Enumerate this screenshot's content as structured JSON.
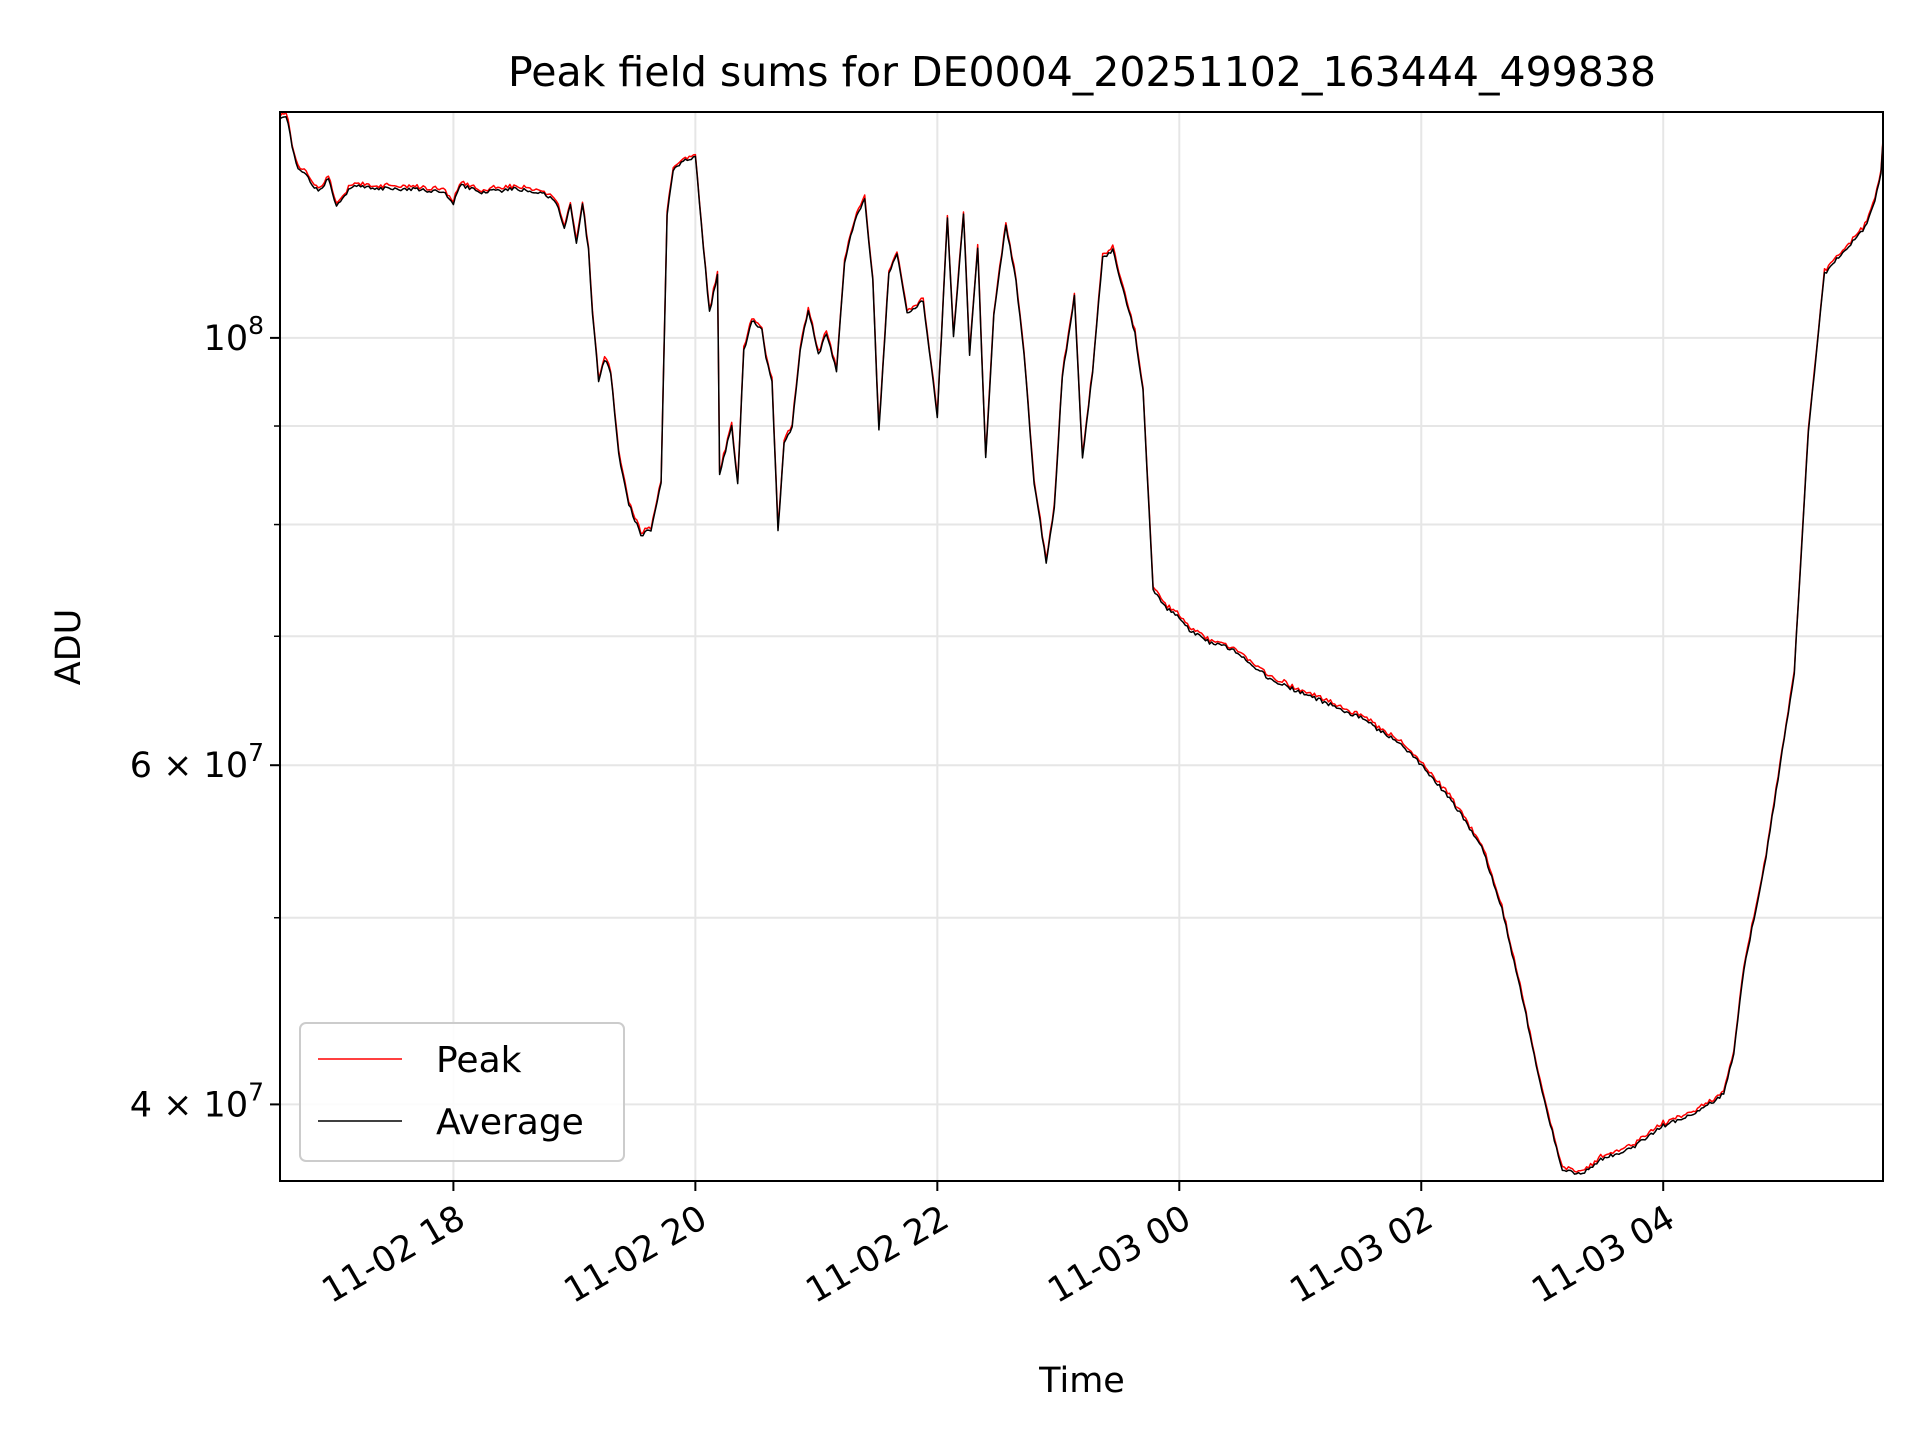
{
  "chart_data": {
    "type": "line",
    "title": "Peak field sums for DE0004_20251102_163444_499838",
    "xlabel": "Time",
    "ylabel": "ADU",
    "yscale": "log",
    "grid": true,
    "legend_position": "lower-left",
    "xlim": [
      "2025-11-02 16:34",
      "2025-11-03 05:49"
    ],
    "ylim": [
      36500000,
      131000000
    ],
    "x_ticks": [
      {
        "value": "2025-11-02 18:00",
        "label": "11-02 18"
      },
      {
        "value": "2025-11-02 20:00",
        "label": "11-02 20"
      },
      {
        "value": "2025-11-02 22:00",
        "label": "11-02 22"
      },
      {
        "value": "2025-11-03 00:00",
        "label": "11-03 00"
      },
      {
        "value": "2025-11-03 02:00",
        "label": "11-03 02"
      },
      {
        "value": "2025-11-03 04:00",
        "label": "11-03 04"
      }
    ],
    "y_ticks": [
      {
        "value": 100000000,
        "mantissa": "",
        "exponent": "8",
        "base": "10"
      },
      {
        "value": 60000000,
        "mantissa": "6",
        "exponent": "7",
        "base": "10"
      },
      {
        "value": 40000000,
        "mantissa": "4",
        "exponent": "7",
        "base": "10"
      }
    ],
    "y_minor_ticks": [
      50000000,
      70000000,
      80000000,
      90000000
    ],
    "times_symbol": "×",
    "series": [
      {
        "name": "Peak",
        "color": "#ff0000"
      },
      {
        "name": "Average",
        "color": "#000000"
      }
    ],
    "x": [
      "2025-11-02 16:34",
      "2025-11-02 16:37",
      "2025-11-02 16:42",
      "2025-11-02 16:48",
      "2025-11-02 16:53",
      "2025-11-02 16:58",
      "2025-11-02 17:02",
      "2025-11-02 17:10",
      "2025-11-02 17:25",
      "2025-11-02 17:40",
      "2025-11-02 17:55",
      "2025-11-02 18:00",
      "2025-11-02 18:03",
      "2025-11-02 18:15",
      "2025-11-02 18:30",
      "2025-11-02 18:45",
      "2025-11-02 18:52",
      "2025-11-02 18:55",
      "2025-11-02 18:58",
      "2025-11-02 19:01",
      "2025-11-02 19:04",
      "2025-11-02 19:07",
      "2025-11-02 19:09",
      "2025-11-02 19:12",
      "2025-11-02 19:15",
      "2025-11-02 19:18",
      "2025-11-02 19:22",
      "2025-11-02 19:27",
      "2025-11-02 19:33",
      "2025-11-02 19:38",
      "2025-11-02 19:43",
      "2025-11-02 19:46",
      "2025-11-02 19:49",
      "2025-11-02 19:53",
      "2025-11-02 20:00",
      "2025-11-02 20:07",
      "2025-11-02 20:11",
      "2025-11-02 20:12",
      "2025-11-02 20:18",
      "2025-11-02 20:21",
      "2025-11-02 20:24",
      "2025-11-02 20:28",
      "2025-11-02 20:33",
      "2025-11-02 20:35",
      "2025-11-02 20:38",
      "2025-11-02 20:41",
      "2025-11-02 20:44",
      "2025-11-02 20:48",
      "2025-11-02 20:52",
      "2025-11-02 20:56",
      "2025-11-02 21:01",
      "2025-11-02 21:05",
      "2025-11-02 21:10",
      "2025-11-02 21:14",
      "2025-11-02 21:19",
      "2025-11-02 21:24",
      "2025-11-02 21:28",
      "2025-11-02 21:31",
      "2025-11-02 21:36",
      "2025-11-02 21:40",
      "2025-11-02 21:45",
      "2025-11-02 21:53",
      "2025-11-02 22:00",
      "2025-11-02 22:05",
      "2025-11-02 22:08",
      "2025-11-02 22:13",
      "2025-11-02 22:16",
      "2025-11-02 22:20",
      "2025-11-02 22:24",
      "2025-11-02 22:28",
      "2025-11-02 22:34",
      "2025-11-02 22:39",
      "2025-11-02 22:43",
      "2025-11-02 22:48",
      "2025-11-02 22:54",
      "2025-11-02 22:58",
      "2025-11-02 23:02",
      "2025-11-02 23:08",
      "2025-11-02 23:12",
      "2025-11-02 23:17",
      "2025-11-02 23:22",
      "2025-11-02 23:27",
      "2025-11-02 23:33",
      "2025-11-02 23:38",
      "2025-11-02 23:42",
      "2025-11-02 23:47",
      "2025-11-02 23:53",
      "2025-11-02 23:57",
      "2025-11-03 00:00",
      "2025-11-03 00:05",
      "2025-11-03 00:15",
      "2025-11-03 00:25",
      "2025-11-03 00:30",
      "2025-11-03 00:45",
      "2025-11-03 00:52",
      "2025-11-03 01:15",
      "2025-11-03 01:30",
      "2025-11-03 01:50",
      "2025-11-03 02:00",
      "2025-11-03 02:15",
      "2025-11-03 02:30",
      "2025-11-03 02:40",
      "2025-11-03 02:50",
      "2025-11-03 03:00",
      "2025-11-03 03:10",
      "2025-11-03 03:20",
      "2025-11-03 03:30",
      "2025-11-03 03:45",
      "2025-11-03 04:00",
      "2025-11-03 04:15",
      "2025-11-03 04:30",
      "2025-11-03 04:35",
      "2025-11-03 04:40",
      "2025-11-03 04:50",
      "2025-11-03 04:58",
      "2025-11-03 05:05",
      "2025-11-03 05:12",
      "2025-11-03 05:20",
      "2025-11-03 05:28",
      "2025-11-03 05:35",
      "2025-11-03 05:40",
      "2025-11-03 05:45",
      "2025-11-03 05:49"
    ],
    "average": [
      130000000,
      130500000,
      123000000,
      121000000,
      119000000,
      121000000,
      117000000,
      120000000,
      119500000,
      119500000,
      119000000,
      117500000,
      120000000,
      119000000,
      119500000,
      119000000,
      117000000,
      114000000,
      117000000,
      112000000,
      117500000,
      111000000,
      103000000,
      95000000,
      97500000,
      96000000,
      87000000,
      82000000,
      79000000,
      79500000,
      84000000,
      116000000,
      122000000,
      123500000,
      124000000,
      103000000,
      108000000,
      85000000,
      90000000,
      84000000,
      98500000,
      102000000,
      101000000,
      97500000,
      95000000,
      79500000,
      88000000,
      90000000,
      98500000,
      103500000,
      98000000,
      100500000,
      96000000,
      109500000,
      115000000,
      118000000,
      107000000,
      89500000,
      108000000,
      110500000,
      103000000,
      104500000,
      91000000,
      115500000,
      100000000,
      116000000,
      98000000,
      111500000,
      86500000,
      103000000,
      114500000,
      107000000,
      98000000,
      84000000,
      76500000,
      81500000,
      95500000,
      105000000,
      86500000,
      96000000,
      110000000,
      111000000,
      105000000,
      100500000,
      94000000,
      74000000,
      72500000,
      72000000,
      71500000,
      70500000,
      69500000,
      69000000,
      68500000,
      66500000,
      66000000,
      64500000,
      63500000,
      61500000,
      60000000,
      57500000,
      54500000,
      50500000,
      45500000,
      40500000,
      37000000,
      36800000,
      37500000,
      38000000,
      39000000,
      39500000,
      40500000,
      42500000,
      47000000,
      53000000,
      60000000,
      67000000,
      89500000,
      108000000,
      110500000,
      112500000,
      114000000,
      118000000,
      123000000,
      126500000
    ]
  }
}
